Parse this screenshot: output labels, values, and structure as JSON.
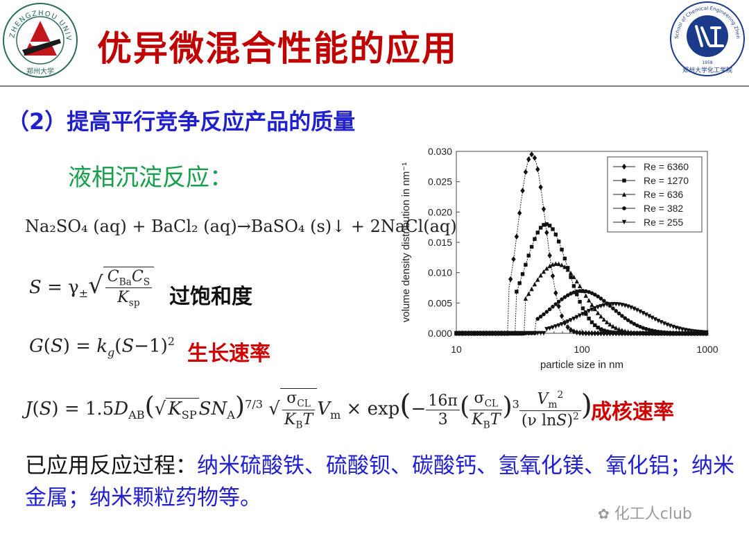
{
  "header": {
    "title": "优异微混合性能的应用",
    "left_logo_text": "ZHENGZHOU UNIVERSITY",
    "left_logo_cn": "郑州大学",
    "right_logo_text": "School of Chemical Engineering Zhengzhou University",
    "right_logo_cn": "郑州大学化工学院",
    "right_logo_year": "1958"
  },
  "subtitle": "（2）提高平行竞争反应产品的质量",
  "section": "液相沉淀反应：",
  "equations": {
    "reaction": "Na₂SO₄ (aq) + BaCl₂ (aq)→BaSO₄ (s)↓ + 2NaCl(aq)",
    "supersaturation_label": "过饱和度",
    "growth_label": "生长速率",
    "nucleation_label": "成核速率"
  },
  "processes": {
    "label": "已应用反应过程：",
    "text": "纳米硫酸铁、硫酸钡、碳酸钙、氢氧化镁、氧化铝；纳米金属；纳米颗粒药物等。"
  },
  "watermark": "化工人club",
  "colors": {
    "title": "#c00000",
    "subtitle": "#1f1fd0",
    "section": "#16a04a",
    "accent_red": "#d00000"
  },
  "chart_data": {
    "type": "line",
    "xlabel": "particle size in nm",
    "ylabel": "volume density distribution in nm⁻¹",
    "xscale": "log",
    "xlim": [
      10,
      1000
    ],
    "ylim": [
      0,
      0.03
    ],
    "xticks": [
      "10",
      "100",
      "1000"
    ],
    "yticks": [
      "0.000",
      "0.005",
      "0.010",
      "0.015",
      "0.020",
      "0.025",
      "0.030"
    ],
    "legend_position": "top-right",
    "series": [
      {
        "name": "Re = 6360",
        "marker": "diamond",
        "peak_x": 40,
        "peak_y": 0.0295,
        "sigma": 0.11,
        "cutoff": 26
      },
      {
        "name": "Re = 1270",
        "marker": "square",
        "peak_x": 52,
        "peak_y": 0.018,
        "sigma": 0.17,
        "cutoff": 30
      },
      {
        "name": "Re = 636",
        "marker": "triangle-up",
        "peak_x": 63,
        "peak_y": 0.0115,
        "sigma": 0.21,
        "cutoff": 35
      },
      {
        "name": "Re = 382",
        "marker": "circle",
        "peak_x": 100,
        "peak_y": 0.007,
        "sigma": 0.24,
        "cutoff": 43
      },
      {
        "name": "Re = 255",
        "marker": "triangle-down",
        "peak_x": 180,
        "peak_y": 0.0048,
        "sigma": 0.27,
        "cutoff": 52
      }
    ]
  }
}
